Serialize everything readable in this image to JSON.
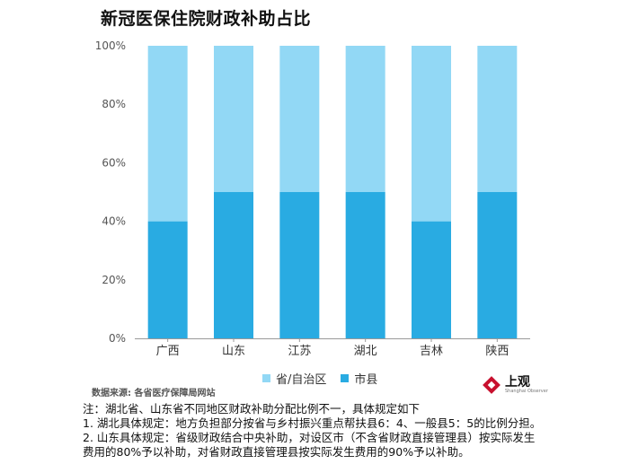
{
  "title": "新冠医保住院财政补助占比",
  "chart_data": {
    "type": "bar",
    "stacked": true,
    "categories": [
      "广西",
      "山东",
      "江苏",
      "湖北",
      "吉林",
      "陕西"
    ],
    "series": [
      {
        "name": "市县",
        "values": [
          40,
          50,
          50,
          50,
          40,
          50
        ]
      },
      {
        "name": "省/自治区",
        "values": [
          60,
          50,
          50,
          50,
          60,
          50
        ]
      }
    ],
    "yticks": [
      "0%",
      "20%",
      "40%",
      "60%",
      "80%",
      "100%"
    ],
    "ylim": [
      0,
      100
    ],
    "legend_position": "bottom",
    "grid": false
  },
  "colors": {
    "lower": "#29ABE2",
    "upper": "#92D8F5"
  },
  "legend": {
    "upper_label": "省/自治区",
    "lower_label": "市县"
  },
  "source": "数据来源: 各省医疗保障局网站",
  "logo": {
    "name": "上观",
    "sub": "Shanghai Observer"
  },
  "notes": [
    "注：湖北省、山东省不同地区财政补助分配比例不一，具体规定如下",
    "1. 湖北具体规定：地方负担部分按省与乡村振兴重点帮扶县6：4、一般县5：5的比例分担。",
    "2. 山东具体规定：省级财政结合中央补助，对设区市（不含省财政直接管理县）按实际发生",
    "费用的80%予以补助，对省财政直接管理县按实际发生费用的90%予以补助。"
  ]
}
